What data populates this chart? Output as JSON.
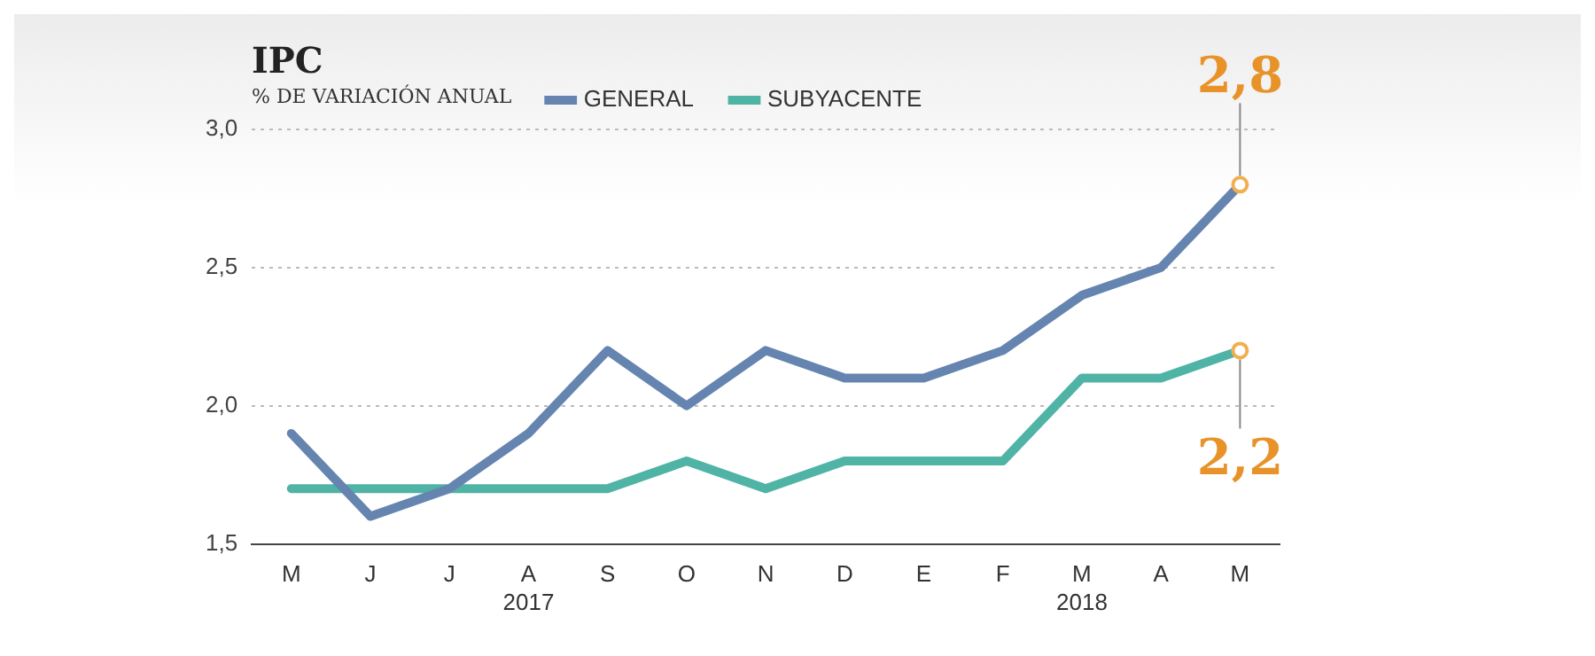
{
  "chart_data": {
    "type": "line",
    "title": "IPC",
    "subtitle": "% DE VARIACIÓN ANUAL",
    "categories": [
      "M",
      "J",
      "J",
      "A\n2017",
      "S",
      "O",
      "N",
      "D",
      "E",
      "F",
      "M\n2018",
      "A",
      "M"
    ],
    "series": [
      {
        "name": "GENERAL",
        "color": "#6585b0",
        "values": [
          1.9,
          1.6,
          1.7,
          1.9,
          2.2,
          2.0,
          2.2,
          2.1,
          2.1,
          2.2,
          2.4,
          2.5,
          2.8
        ]
      },
      {
        "name": "SUBYACENTE",
        "color": "#4fb3a6",
        "values": [
          1.7,
          1.7,
          1.7,
          1.7,
          1.7,
          1.8,
          1.7,
          1.8,
          1.8,
          1.8,
          2.1,
          2.1,
          2.2
        ]
      }
    ],
    "ylim": [
      1.5,
      3.0
    ],
    "yticks": [
      {
        "value": 1.5,
        "label": "1,5"
      },
      {
        "value": 2.0,
        "label": "2,0"
      },
      {
        "value": 2.5,
        "label": "2,5"
      },
      {
        "value": 3.0,
        "label": "3,0"
      }
    ],
    "grid": "y",
    "legend": "top",
    "marker": "none",
    "annotations": [
      "2,8",
      "2,2"
    ]
  }
}
